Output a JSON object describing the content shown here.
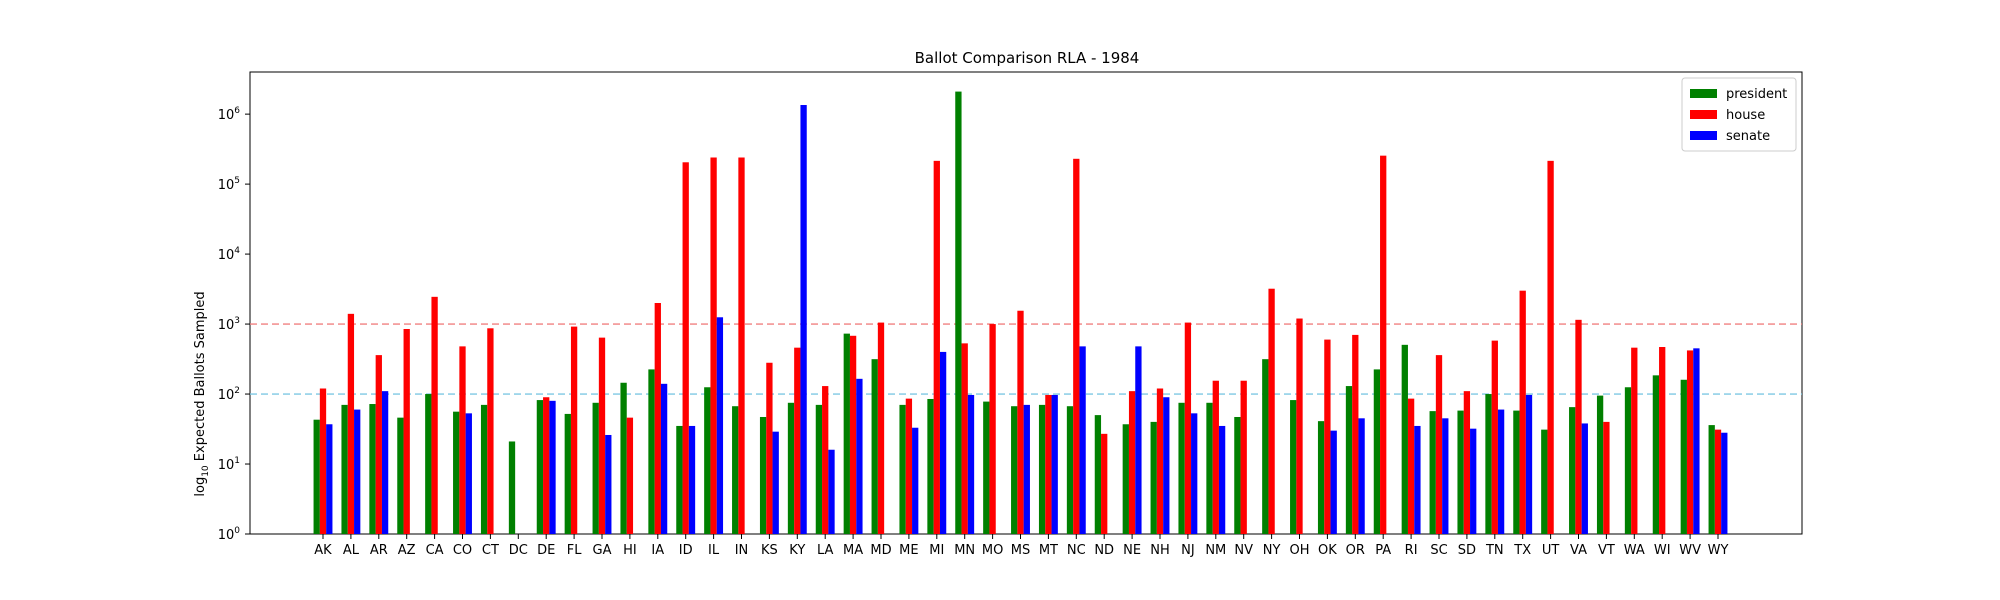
{
  "chart_data": {
    "type": "bar",
    "title": "Ballot Comparison RLA - 1984",
    "xlabel": "",
    "ylabel_prefix": "log",
    "ylabel_sub": "10",
    "ylabel_rest": " Expected Ballots Sampled",
    "yscale": "log",
    "ylim": [
      1,
      4000000
    ],
    "yticks": [
      {
        "value": 1,
        "base": "10",
        "exp": "0"
      },
      {
        "value": 10,
        "base": "10",
        "exp": "1"
      },
      {
        "value": 100,
        "base": "10",
        "exp": "2"
      },
      {
        "value": 1000,
        "base": "10",
        "exp": "3"
      },
      {
        "value": 10000,
        "base": "10",
        "exp": "4"
      },
      {
        "value": 100000,
        "base": "10",
        "exp": "5"
      },
      {
        "value": 1000000,
        "base": "10",
        "exp": "6"
      }
    ],
    "grid": false,
    "legend_position": "top-right",
    "reference_lines": [
      {
        "value": 1000,
        "color": "#f08080",
        "style": "dashed"
      },
      {
        "value": 100,
        "color": "#7ec8e3",
        "style": "dashed"
      }
    ],
    "categories": [
      "AK",
      "AL",
      "AR",
      "AZ",
      "CA",
      "CO",
      "CT",
      "DC",
      "DE",
      "FL",
      "GA",
      "HI",
      "IA",
      "ID",
      "IL",
      "IN",
      "KS",
      "KY",
      "LA",
      "MA",
      "MD",
      "ME",
      "MI",
      "MN",
      "MO",
      "MS",
      "MT",
      "NC",
      "ND",
      "NE",
      "NH",
      "NJ",
      "NM",
      "NV",
      "NY",
      "OH",
      "OK",
      "OR",
      "PA",
      "RI",
      "SC",
      "SD",
      "TN",
      "TX",
      "UT",
      "VA",
      "VT",
      "WA",
      "WI",
      "WV",
      "WY"
    ],
    "series": [
      {
        "name": "president",
        "color": "#008000",
        "values": [
          43,
          70,
          72,
          46,
          100,
          56,
          70,
          21,
          82,
          52,
          75,
          145,
          225,
          35,
          125,
          67,
          47,
          75,
          70,
          730,
          315,
          70,
          85,
          2100000,
          78,
          67,
          70,
          67,
          50,
          37,
          40,
          75,
          75,
          47,
          315,
          82,
          41,
          130,
          225,
          505,
          57,
          58,
          100,
          58,
          31,
          65,
          95,
          125,
          185,
          160,
          36
        ]
      },
      {
        "name": "house",
        "color": "#ff0000",
        "values": [
          120,
          1400,
          360,
          850,
          2450,
          480,
          870,
          null,
          90,
          920,
          640,
          46,
          2000,
          205000,
          240000,
          240000,
          280,
          460,
          130,
          680,
          1050,
          86,
          215000,
          530,
          1000,
          1550,
          97,
          230000,
          27,
          110,
          120,
          1050,
          155,
          155,
          3200,
          1200,
          600,
          700,
          255000,
          86,
          360,
          110,
          580,
          3000,
          215000,
          1150,
          40,
          460,
          470,
          420,
          31
        ]
      },
      {
        "name": "senate",
        "color": "#0000ff",
        "values": [
          37,
          60,
          110,
          null,
          null,
          53,
          null,
          null,
          80,
          null,
          26,
          null,
          140,
          35,
          1250,
          null,
          29,
          1350000,
          16,
          165,
          null,
          33,
          400,
          97,
          null,
          70,
          97,
          480,
          null,
          480,
          90,
          53,
          35,
          null,
          null,
          null,
          30,
          45,
          null,
          35,
          45,
          32,
          60,
          97,
          null,
          38,
          null,
          null,
          null,
          450,
          28
        ]
      }
    ]
  }
}
